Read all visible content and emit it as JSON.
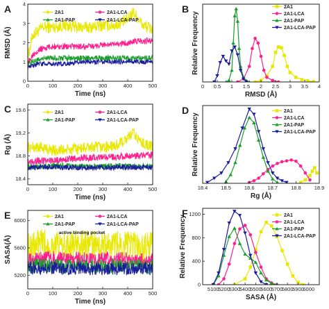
{
  "chart_data": [
    {
      "panel": "A",
      "type": "line",
      "xlabel": "Time (ns)",
      "ylabel": "RMSD (Å)",
      "xlim": [
        0,
        500
      ],
      "ylim": [
        0,
        4
      ],
      "xticks": [
        0,
        100,
        200,
        300,
        400,
        500
      ],
      "yticks": [
        0,
        1,
        2,
        3,
        4
      ],
      "legend": [
        {
          "name": "2A1",
          "color": "#e8e800",
          "marker": "circle"
        },
        {
          "name": "2A1-LCA",
          "color": "#ff1f8e",
          "marker": "circle"
        },
        {
          "name": "2A1-PAP",
          "color": "#1a9e2a",
          "marker": "triangle-up"
        },
        {
          "name": "2A1-LCA-PAP",
          "color": "#1b1b9e",
          "marker": "triangle-down"
        }
      ],
      "series": [
        {
          "name": "2A1",
          "color": "#e8e800",
          "x": [
            0,
            20,
            40,
            60,
            80,
            100,
            150,
            200,
            250,
            300,
            350,
            400,
            420,
            440,
            460,
            480,
            500
          ],
          "y": [
            1.2,
            2.4,
            2.6,
            2.8,
            2.8,
            2.8,
            2.9,
            2.8,
            2.8,
            2.9,
            2.9,
            3.2,
            3.6,
            3.3,
            2.9,
            2.8,
            2.7
          ]
        },
        {
          "name": "2A1-LCA",
          "color": "#ff1f8e",
          "x": [
            0,
            20,
            40,
            60,
            100,
            150,
            200,
            250,
            300,
            350,
            400,
            450,
            500
          ],
          "y": [
            0.9,
            1.4,
            1.6,
            1.7,
            1.8,
            1.8,
            1.8,
            1.8,
            1.9,
            1.9,
            2.0,
            2.1,
            2.1
          ]
        },
        {
          "name": "2A1-PAP",
          "color": "#1a9e2a",
          "x": [
            0,
            20,
            40,
            60,
            100,
            150,
            200,
            250,
            300,
            350,
            400,
            450,
            500
          ],
          "y": [
            0.9,
            1.0,
            1.1,
            1.2,
            1.2,
            1.2,
            1.2,
            1.2,
            1.2,
            1.2,
            1.2,
            1.2,
            1.2
          ]
        },
        {
          "name": "2A1-LCA-PAP",
          "color": "#1b1b9e",
          "x": [
            0,
            20,
            40,
            60,
            100,
            150,
            200,
            250,
            300,
            350,
            400,
            450,
            500
          ],
          "y": [
            0.7,
            0.8,
            0.9,
            0.9,
            0.9,
            0.9,
            1.0,
            1.0,
            1.0,
            1.0,
            1.0,
            1.0,
            1.0
          ]
        }
      ]
    },
    {
      "panel": "B",
      "type": "line",
      "xlabel": "RMSD (Å)",
      "ylabel": "Relative Frequency",
      "xlim": [
        0,
        4
      ],
      "ylim": [
        0,
        1000
      ],
      "xticks": [
        0.0,
        0.5,
        1.0,
        1.5,
        2.0,
        2.5,
        3.0,
        3.5,
        4.0
      ],
      "legend": [
        {
          "name": "2A1",
          "color": "#e8e800",
          "marker": "square"
        },
        {
          "name": "2A1-LCA",
          "color": "#ff1f8e",
          "marker": "circle"
        },
        {
          "name": "2A1-PAP",
          "color": "#1a9e2a",
          "marker": "triangle-up"
        },
        {
          "name": "2A1-LCA-PAP",
          "color": "#1b1b9e",
          "marker": "triangle-down"
        }
      ],
      "series": [
        {
          "name": "2A1",
          "color": "#e8e800",
          "x": [
            1.8,
            2.0,
            2.2,
            2.4,
            2.5,
            2.6,
            2.7,
            2.8,
            2.9,
            3.0,
            3.2,
            3.4,
            3.6,
            3.8
          ],
          "y": [
            0,
            20,
            80,
            200,
            380,
            450,
            440,
            340,
            200,
            120,
            60,
            30,
            15,
            5
          ]
        },
        {
          "name": "2A1-LCA",
          "color": "#ff1f8e",
          "x": [
            1.2,
            1.4,
            1.6,
            1.7,
            1.8,
            1.9,
            2.0,
            2.1,
            2.2,
            2.4,
            2.6
          ],
          "y": [
            0,
            40,
            200,
            430,
            560,
            500,
            330,
            150,
            60,
            20,
            0
          ]
        },
        {
          "name": "2A1-PAP",
          "color": "#1a9e2a",
          "x": [
            0.8,
            0.9,
            1.0,
            1.05,
            1.1,
            1.15,
            1.2,
            1.25,
            1.3,
            1.4,
            1.5,
            1.6
          ],
          "y": [
            0,
            20,
            150,
            500,
            850,
            940,
            780,
            430,
            200,
            60,
            15,
            0
          ]
        },
        {
          "name": "2A1-LCA-PAP",
          "color": "#1b1b9e",
          "x": [
            0.4,
            0.5,
            0.6,
            0.7,
            0.8,
            0.9,
            1.0,
            1.1,
            1.2,
            1.3,
            1.4,
            1.5
          ],
          "y": [
            0,
            80,
            250,
            330,
            270,
            230,
            400,
            450,
            350,
            150,
            40,
            0
          ]
        }
      ]
    },
    {
      "panel": "C",
      "type": "line",
      "xlabel": "Time (ns)",
      "ylabel": "Rg (Å)",
      "xlim": [
        0,
        500
      ],
      "ylim": [
        18.3,
        19.7
      ],
      "xticks": [
        0,
        100,
        200,
        300,
        400,
        500
      ],
      "yticks": [
        18.4,
        18.8,
        19.2,
        19.6
      ],
      "legend": [
        {
          "name": "2A1",
          "color": "#e8e800",
          "marker": "circle"
        },
        {
          "name": "2A1-LCA",
          "color": "#ff1f8e",
          "marker": "circle"
        },
        {
          "name": "2A1-PAP",
          "color": "#1a9e2a",
          "marker": "triangle-up"
        },
        {
          "name": "2A1-LCA-PAP",
          "color": "#1b1b9e",
          "marker": "triangle-down"
        }
      ],
      "series": [
        {
          "name": "2A1",
          "color": "#e8e800",
          "x": [
            0,
            50,
            100,
            150,
            200,
            250,
            300,
            350,
            400,
            420,
            450,
            500
          ],
          "y": [
            18.95,
            18.95,
            18.9,
            18.9,
            18.92,
            18.95,
            18.95,
            18.97,
            19.1,
            19.2,
            19.05,
            18.95
          ]
        },
        {
          "name": "2A1-LCA",
          "color": "#ff1f8e",
          "x": [
            0,
            50,
            100,
            150,
            200,
            250,
            300,
            350,
            400,
            450,
            500
          ],
          "y": [
            18.7,
            18.72,
            18.72,
            18.74,
            18.76,
            18.77,
            18.78,
            18.78,
            18.8,
            18.8,
            18.82
          ]
        },
        {
          "name": "2A1-PAP",
          "color": "#1a9e2a",
          "x": [
            0,
            50,
            100,
            150,
            200,
            250,
            300,
            350,
            400,
            450,
            500
          ],
          "y": [
            18.62,
            18.62,
            18.63,
            18.63,
            18.62,
            18.62,
            18.62,
            18.63,
            18.62,
            18.62,
            18.62
          ]
        },
        {
          "name": "2A1-LCA-PAP",
          "color": "#1b1b9e",
          "x": [
            0,
            50,
            100,
            150,
            200,
            250,
            300,
            350,
            400,
            450,
            500
          ],
          "y": [
            18.6,
            18.6,
            18.61,
            18.6,
            18.6,
            18.6,
            18.6,
            18.6,
            18.6,
            18.6,
            18.6
          ]
        }
      ]
    },
    {
      "panel": "D",
      "type": "line",
      "xlabel": "Rg (Å)",
      "ylabel": "Relative Frequency",
      "xlim": [
        18.4,
        18.9
      ],
      "ylim": [
        0,
        450
      ],
      "xticks": [
        18.4,
        18.5,
        18.6,
        18.7,
        18.8,
        18.9
      ],
      "legend": [
        {
          "name": "2A1",
          "color": "#e8e800",
          "marker": "square"
        },
        {
          "name": "2A1-LCA",
          "color": "#ff1f8e",
          "marker": "circle"
        },
        {
          "name": "2A1-PAP",
          "color": "#1a9e2a",
          "marker": "triangle-up"
        },
        {
          "name": "2A1-LCA-PAP",
          "color": "#1b1b9e",
          "marker": "triangle-down"
        }
      ],
      "series": [
        {
          "name": "2A1",
          "color": "#e8e800",
          "x": [
            18.82,
            18.84,
            18.86,
            18.87,
            18.88,
            18.89
          ],
          "y": [
            5,
            20,
            45,
            70,
            90,
            60
          ]
        },
        {
          "name": "2A1-LCA",
          "color": "#ff1f8e",
          "x": [
            18.6,
            18.62,
            18.64,
            18.66,
            18.68,
            18.7,
            18.72,
            18.74,
            18.76,
            18.78,
            18.8,
            18.82,
            18.84,
            18.86
          ],
          "y": [
            5,
            15,
            30,
            55,
            80,
            100,
            115,
            125,
            130,
            135,
            128,
            100,
            60,
            20
          ]
        },
        {
          "name": "2A1-PAP",
          "color": "#1a9e2a",
          "x": [
            18.5,
            18.52,
            18.54,
            18.56,
            18.58,
            18.6,
            18.62,
            18.64,
            18.66,
            18.68,
            18.7,
            18.72
          ],
          "y": [
            10,
            50,
            120,
            220,
            320,
            380,
            350,
            250,
            150,
            70,
            25,
            5
          ]
        },
        {
          "name": "2A1-LCA-PAP",
          "color": "#1b1b9e",
          "x": [
            18.42,
            18.45,
            18.48,
            18.51,
            18.54,
            18.57,
            18.6,
            18.62,
            18.64,
            18.66,
            18.68,
            18.7,
            18.72,
            18.74,
            18.76
          ],
          "y": [
            5,
            30,
            60,
            120,
            200,
            320,
            430,
            400,
            300,
            200,
            120,
            60,
            30,
            15,
            5
          ]
        }
      ]
    },
    {
      "panel": "E",
      "type": "line",
      "xlabel": "Time (ns)",
      "ylabel": "SASA(Å)",
      "xlim": [
        0,
        500
      ],
      "ylim": [
        5000,
        6150
      ],
      "xticks": [
        0,
        100,
        200,
        300,
        400,
        500
      ],
      "yticks": [
        5200,
        5600,
        6000
      ],
      "annotation": "active binding pocket",
      "legend": [
        {
          "name": "2A1",
          "color": "#e8e800",
          "marker": "circle"
        },
        {
          "name": "2A1-LCA",
          "color": "#ff1f8e",
          "marker": "circle"
        },
        {
          "name": "2A1-PAP",
          "color": "#1a9e2a",
          "marker": "triangle-up"
        },
        {
          "name": "2A1-LCA-PAP",
          "color": "#1b1b9e",
          "marker": "triangle-down"
        }
      ],
      "series": [
        {
          "name": "2A1",
          "color": "#e8e800",
          "x": [
            0,
            50,
            100,
            150,
            200,
            250,
            300,
            350,
            400,
            450,
            500
          ],
          "y": [
            5620,
            5660,
            5640,
            5620,
            5640,
            5650,
            5620,
            5640,
            5650,
            5600,
            5620
          ]
        },
        {
          "name": "2A1-LCA",
          "color": "#ff1f8e",
          "x": [
            0,
            50,
            100,
            150,
            200,
            250,
            300,
            350,
            400,
            450,
            500
          ],
          "y": [
            5420,
            5440,
            5450,
            5430,
            5440,
            5420,
            5430,
            5440,
            5430,
            5420,
            5420
          ]
        },
        {
          "name": "2A1-PAP",
          "color": "#1a9e2a",
          "x": [
            0,
            50,
            100,
            150,
            200,
            250,
            300,
            350,
            400,
            450,
            500
          ],
          "y": [
            5330,
            5340,
            5350,
            5330,
            5340,
            5350,
            5330,
            5340,
            5320,
            5330,
            5330
          ]
        },
        {
          "name": "2A1-LCA-PAP",
          "color": "#1b1b9e",
          "x": [
            0,
            50,
            100,
            150,
            200,
            250,
            300,
            350,
            400,
            450,
            500
          ],
          "y": [
            5300,
            5300,
            5310,
            5300,
            5300,
            5290,
            5300,
            5300,
            5290,
            5300,
            5300
          ]
        }
      ]
    },
    {
      "panel": "F",
      "type": "line",
      "xlabel": "SASA (Å)",
      "ylabel": "Relative Frequency",
      "xlim": [
        5000,
        6100
      ],
      "ylim": [
        0,
        1300
      ],
      "xticks": [
        5100,
        5200,
        5300,
        5400,
        5500,
        5600,
        5700,
        5800,
        5900,
        6000,
        6100
      ],
      "yticks": [
        0,
        400,
        800,
        1200
      ],
      "legend": [
        {
          "name": "2A1",
          "color": "#e8e800",
          "marker": "square"
        },
        {
          "name": "2A1-LCA",
          "color": "#ff1f8e",
          "marker": "circle"
        },
        {
          "name": "2A1-PAP",
          "color": "#1a9e2a",
          "marker": "triangle-up"
        },
        {
          "name": "2A1-LCA-PAP",
          "color": "#1b1b9e",
          "marker": "triangle-down"
        }
      ],
      "series": [
        {
          "name": "2A1",
          "color": "#e8e800",
          "x": [
            5300,
            5400,
            5450,
            5500,
            5550,
            5600,
            5650,
            5700,
            5750,
            5800,
            5850,
            5900,
            5950
          ],
          "y": [
            0,
            100,
            300,
            600,
            900,
            1060,
            1000,
            820,
            580,
            350,
            150,
            40,
            0
          ]
        },
        {
          "name": "2A1-LCA",
          "color": "#ff1f8e",
          "x": [
            5150,
            5200,
            5250,
            5300,
            5350,
            5400,
            5450,
            5500,
            5550,
            5600,
            5650,
            5700
          ],
          "y": [
            0,
            100,
            350,
            700,
            950,
            1010,
            850,
            550,
            300,
            100,
            30,
            0
          ]
        },
        {
          "name": "2A1-PAP",
          "color": "#1a9e2a",
          "x": [
            5100,
            5150,
            5200,
            5250,
            5300,
            5350,
            5400,
            5450,
            5500,
            5550,
            5600,
            5650,
            5700
          ],
          "y": [
            0,
            150,
            500,
            820,
            960,
            700,
            520,
            450,
            380,
            200,
            80,
            20,
            0
          ]
        },
        {
          "name": "2A1-LCA-PAP",
          "color": "#1b1b9e",
          "x": [
            5100,
            5150,
            5200,
            5250,
            5300,
            5350,
            5400,
            5450,
            5500,
            5550,
            5600
          ],
          "y": [
            0,
            200,
            600,
            1050,
            1250,
            1180,
            880,
            500,
            200,
            50,
            0
          ]
        }
      ]
    }
  ]
}
